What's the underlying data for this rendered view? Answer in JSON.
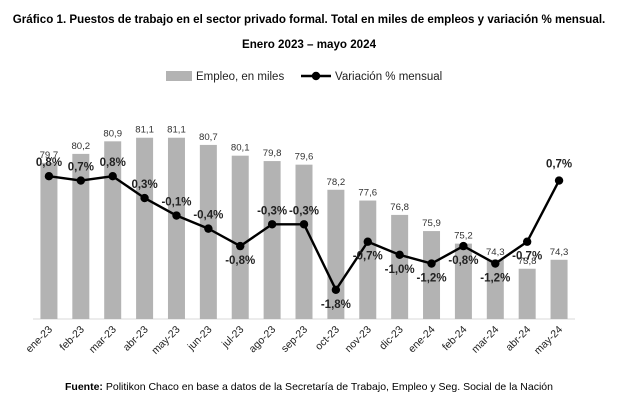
{
  "chart_data": {
    "type": "bar+line",
    "title": "Gráfico 1. Puestos de trabajo en el sector privado formal. Total en miles de empleos y variación % mensual.",
    "subtitle": "Enero 2023 – mayo 2024",
    "categories": [
      "ene-23",
      "feb-23",
      "mar-23",
      "abr-23",
      "may-23",
      "jun-23",
      "jul-23",
      "ago-23",
      "sep-23",
      "oct-23",
      "nov-23",
      "dic-23",
      "ene-24",
      "feb-24",
      "mar-24",
      "abr-24",
      "may-24"
    ],
    "series": [
      {
        "name": "Empleo, en miles",
        "kind": "bar",
        "color": "#b3b3b3",
        "values": [
          79.7,
          80.2,
          80.9,
          81.1,
          81.1,
          80.7,
          80.1,
          79.8,
          79.6,
          78.2,
          77.6,
          76.8,
          75.9,
          75.2,
          74.3,
          73.8,
          74.3
        ],
        "labels": [
          "79,7",
          "80,2",
          "80,9",
          "81,1",
          "81,1",
          "80,7",
          "80,1",
          "79,8",
          "79,6",
          "78,2",
          "77,6",
          "76,8",
          "75,9",
          "75,2",
          "74,3",
          "73,8",
          "74,3"
        ],
        "ylim": [
          71,
          82.2
        ]
      },
      {
        "name": "Variación % mensual",
        "kind": "line",
        "color": "#000000",
        "values": [
          0.8,
          0.7,
          0.8,
          0.3,
          -0.1,
          -0.4,
          -0.8,
          -0.3,
          -0.3,
          -1.8,
          -0.7,
          -1.0,
          -1.2,
          -0.8,
          -1.2,
          -0.7,
          0.7
        ],
        "labels": [
          "0,8%",
          "0,7%",
          "0,8%",
          "0,3%",
          "-0,1%",
          "-0,4%",
          "-0,8%",
          "-0,3%",
          "-0,3%",
          "-1,8%",
          "-0,7%",
          "-1,0%",
          "-1,2%",
          "-0,8%",
          "-1,2%",
          "-0,7%",
          "0,7%"
        ],
        "ylim": [
          -2.4,
          1.4
        ]
      }
    ],
    "legend_position": "top-center",
    "grid": false
  },
  "source": {
    "label": "Fuente:",
    "text": "Politikon Chaco en base a datos de la Secretaría de Trabajo, Empleo y Seg. Social de la Nación"
  }
}
